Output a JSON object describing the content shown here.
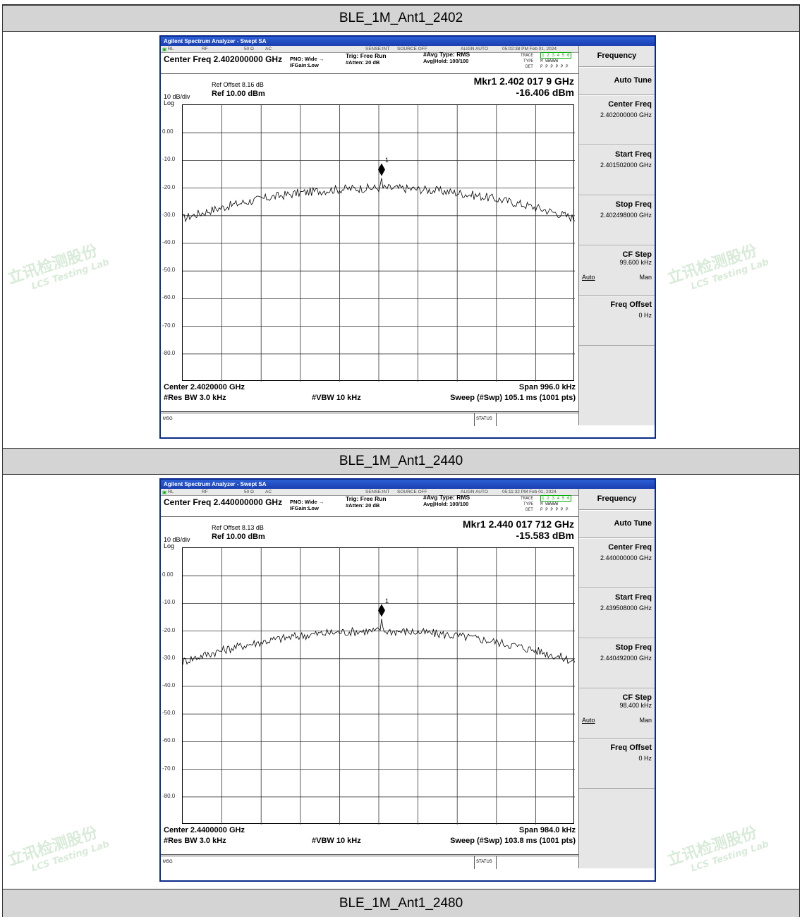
{
  "sections": [
    {
      "heading": "BLE_1M_Ant1_2402",
      "app_title": "Agilent Spectrum Analyzer - Swept SA",
      "topbar": {
        "rl": "RL",
        "rf": "RF",
        "ohm": "50 Ω",
        "ac": "AC",
        "sense": "SENSE:INT",
        "source": "SOURCE OFF",
        "align": "ALIGN AUTO",
        "time": "05:02:38 PM Feb 01, 2024"
      },
      "center_freq_title": "Center Freq 2.402000000 GHz",
      "pno": "PNO: Wide",
      "ifgain": "IFGain:Low",
      "trig": "Trig: Free Run",
      "atten": "#Atten: 20 dB",
      "avg_type": "#Avg Type: RMS",
      "avg_hold": "Avg|Hold: 100/100",
      "trace_label": "TRACE",
      "trace_vals": "1 2 3 4 5 6",
      "type_label": "TYPE",
      "type_vals": "M WWWWW",
      "det_label": "DET",
      "det_vals": "P P P P P P",
      "ref_offset": "Ref Offset 8.16 dB",
      "ref_level": "Ref 10.00 dBm",
      "div": "10 dB/div",
      "log": "Log",
      "mkr_freq": "Mkr1 2.402 017 9 GHz",
      "mkr_level": "-16.406 dBm",
      "marker_label": "1",
      "y_ticks": [
        "0.00",
        "-10.0",
        "-20.0",
        "-30.0",
        "-40.0",
        "-50.0",
        "-60.0",
        "-70.0",
        "-80.0"
      ],
      "center_footer": "Center 2.4020000 GHz",
      "span": "Span 996.0 kHz",
      "rbw": "#Res BW 3.0 kHz",
      "vbw": "#VBW 10 kHz",
      "sweep": "Sweep (#Swp)  105.1 ms (1001 pts)",
      "msg": "MSG",
      "status": "STATUS",
      "menu": {
        "header": "Frequency",
        "auto_tune": "Auto Tune",
        "center_freq_label": "Center Freq",
        "center_freq_val": "2.402000000 GHz",
        "start_freq_label": "Start Freq",
        "start_freq_val": "2.401502000 GHz",
        "stop_freq_label": "Stop Freq",
        "stop_freq_val": "2.402498000 GHz",
        "cf_step_label": "CF Step",
        "cf_step_val": "99.600 kHz",
        "auto": "Auto",
        "man": "Man",
        "freq_offset_label": "Freq Offset",
        "freq_offset_val": "0 Hz"
      }
    },
    {
      "heading": "BLE_1M_Ant1_2440",
      "app_title": "Agilent Spectrum Analyzer - Swept SA",
      "topbar": {
        "rl": "RL",
        "rf": "RF",
        "ohm": "50 Ω",
        "ac": "AC",
        "sense": "SENSE:INT",
        "source": "SOURCE OFF",
        "align": "ALIGN AUTO",
        "time": "05:11:32 PM Feb 01, 2024"
      },
      "center_freq_title": "Center Freq 2.440000000 GHz",
      "pno": "PNO: Wide",
      "ifgain": "IFGain:Low",
      "trig": "Trig: Free Run",
      "atten": "#Atten: 20 dB",
      "avg_type": "#Avg Type: RMS",
      "avg_hold": "Avg|Hold: 100/100",
      "trace_label": "TRACE",
      "trace_vals": "1 2 3 4 5 6",
      "type_label": "TYPE",
      "type_vals": "M WWWWW",
      "det_label": "DET",
      "det_vals": "P P P P P P",
      "ref_offset": "Ref Offset 8.13 dB",
      "ref_level": "Ref 10.00 dBm",
      "div": "10 dB/div",
      "log": "Log",
      "mkr_freq": "Mkr1 2.440 017 712 GHz",
      "mkr_level": "-15.583 dBm",
      "marker_label": "1",
      "y_ticks": [
        "0.00",
        "-10.0",
        "-20.0",
        "-30.0",
        "-40.0",
        "-50.0",
        "-60.0",
        "-70.0",
        "-80.0"
      ],
      "center_footer": "Center 2.4400000 GHz",
      "span": "Span 984.0 kHz",
      "rbw": "#Res BW 3.0 kHz",
      "vbw": "#VBW 10 kHz",
      "sweep": "Sweep (#Swp)  103.8 ms (1001 pts)",
      "msg": "MSG",
      "status": "STATUS",
      "menu": {
        "header": "Frequency",
        "auto_tune": "Auto Tune",
        "center_freq_label": "Center Freq",
        "center_freq_val": "2.440000000 GHz",
        "start_freq_label": "Start Freq",
        "start_freq_val": "2.439508000 GHz",
        "stop_freq_label": "Stop Freq",
        "stop_freq_val": "2.440492000 GHz",
        "cf_step_label": "CF Step",
        "cf_step_val": "98.400 kHz",
        "auto": "Auto",
        "man": "Man",
        "freq_offset_label": "Freq Offset",
        "freq_offset_val": "0 Hz"
      }
    }
  ],
  "third_heading": "BLE_1M_Ant1_2480",
  "watermark": {
    "cn": "立讯检测股份",
    "en": "LCS Testing Lab"
  }
}
